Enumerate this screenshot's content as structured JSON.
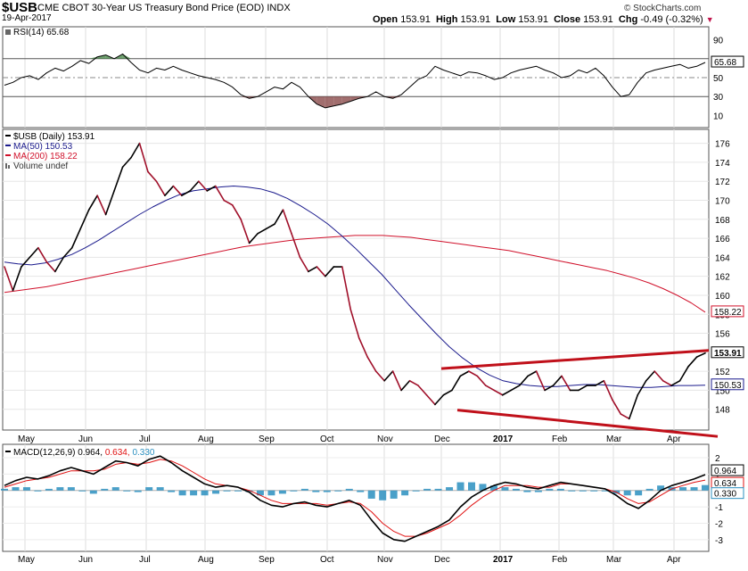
{
  "header": {
    "symbol": "$USB",
    "description": "CME CBOT 30-Year US Treasury Bond Price (EOD)",
    "exchange": "INDX",
    "date": "19-Apr-2017",
    "watermark": "© StockCharts.com",
    "open_label": "Open",
    "open": "153.91",
    "high_label": "High",
    "high": "153.91",
    "low_label": "Low",
    "low": "153.91",
    "close_label": "Close",
    "close": "153.91",
    "chg_label": "Chg",
    "chg": "-0.49 (-0.32%)"
  },
  "colors": {
    "price": "#a0102a",
    "price_up": "#000000",
    "ma50": "#1a1a8c",
    "ma200": "#d0102a",
    "trendline": "#c0101a",
    "macd": "#000000",
    "signal": "#e01010",
    "hist": "#2a8fbf",
    "rsi_fill_high": "#4a8a4a",
    "rsi_fill_low": "#8a4a4a"
  },
  "x_axis": {
    "months": [
      "May",
      "Jun",
      "Jul",
      "Aug",
      "Sep",
      "Oct",
      "Nov",
      "Dec",
      "2017",
      "Feb",
      "Mar",
      "Apr"
    ]
  },
  "rsi_panel": {
    "label": "RSI(14) 65.68",
    "value_tag": "65.68",
    "ticks": [
      "90",
      "70",
      "50",
      "30",
      "10"
    ]
  },
  "chart_data": [
    {
      "type": "line",
      "panel": "RSI",
      "series": [
        {
          "name": "RSI(14)",
          "values": [
            42,
            45,
            50,
            52,
            48,
            55,
            60,
            57,
            62,
            68,
            65,
            72,
            74,
            70,
            75,
            66,
            58,
            55,
            60,
            58,
            62,
            58,
            55,
            52,
            50,
            48,
            45,
            40,
            32,
            28,
            30,
            35,
            40,
            38,
            45,
            40,
            30,
            22,
            18,
            20,
            22,
            25,
            28,
            30,
            35,
            30,
            28,
            32,
            40,
            48,
            52,
            62,
            58,
            55,
            52,
            56,
            55,
            52,
            48,
            50,
            55,
            58,
            60,
            62,
            58,
            55,
            50,
            52,
            58,
            55,
            60,
            52,
            40,
            30,
            32,
            45,
            55,
            58,
            60,
            62,
            64,
            60,
            62,
            66
          ]
        }
      ],
      "ylim": [
        0,
        100
      ],
      "reference_lines": [
        70,
        50,
        30
      ]
    },
    {
      "type": "line",
      "panel": "Price",
      "legend": [
        "$USB (Daily) 153.91",
        "MA(50) 150.53",
        "MA(200) 158.22",
        "Volume undef"
      ],
      "y_ticks": [
        "176",
        "174",
        "172",
        "170",
        "168",
        "166",
        "164",
        "162",
        "160",
        "158",
        "156",
        "154",
        "152",
        "150",
        "148"
      ],
      "last_tags": {
        "price": "153.91",
        "ma50": "150.53",
        "ma200": "158.22"
      },
      "ylim": [
        146,
        177
      ],
      "series": [
        {
          "name": "$USB (Daily) 153.91",
          "values": [
            163,
            160.5,
            163,
            164,
            165,
            163.5,
            162.5,
            164,
            165,
            167,
            169,
            170.5,
            168.5,
            171,
            173.5,
            174.5,
            176,
            173,
            172,
            170.5,
            171.5,
            170.5,
            171,
            172,
            171,
            171.5,
            170,
            169.5,
            168,
            165.5,
            166.5,
            167,
            167.5,
            169,
            166.5,
            164,
            162.5,
            163,
            162,
            163,
            163,
            158.5,
            155.5,
            153.5,
            152,
            151,
            152,
            150,
            151,
            150.5,
            149.5,
            148.5,
            149.5,
            150,
            151.5,
            152,
            151.5,
            150.5,
            150,
            149.5,
            150,
            150.5,
            151.5,
            152,
            150,
            150.5,
            151.5,
            150,
            150,
            150.5,
            150.5,
            151,
            149,
            147.5,
            147,
            149.5,
            151,
            152,
            151,
            150.5,
            151,
            152.5,
            153.5,
            153.91
          ]
        },
        {
          "name": "MA(50) 150.53",
          "values": [
            163.5,
            163.3,
            163.2,
            163.4,
            163.8,
            164.3,
            165.0,
            165.8,
            166.7,
            167.6,
            168.5,
            169.3,
            170.0,
            170.6,
            171.0,
            171.2,
            171.4,
            171.5,
            171.4,
            171.2,
            170.8,
            170.2,
            169.4,
            168.5,
            167.5,
            166.3,
            165.0,
            163.6,
            162.2,
            160.6,
            159.0,
            157.5,
            156.0,
            154.6,
            153.4,
            152.4,
            151.6,
            151.0,
            150.7,
            150.5,
            150.4,
            150.4,
            150.5,
            150.6,
            150.6,
            150.5,
            150.4,
            150.3,
            150.3,
            150.4,
            150.5,
            150.5,
            150.53
          ]
        },
        {
          "name": "MA(200) 158.22",
          "values": [
            160.3,
            160.5,
            160.7,
            160.9,
            161.2,
            161.5,
            161.8,
            162.1,
            162.4,
            162.7,
            163.0,
            163.3,
            163.6,
            163.9,
            164.2,
            164.5,
            164.8,
            165.1,
            165.3,
            165.5,
            165.7,
            165.9,
            166.0,
            166.1,
            166.2,
            166.3,
            166.3,
            166.3,
            166.2,
            166.1,
            165.9,
            165.7,
            165.5,
            165.3,
            165.1,
            164.9,
            164.7,
            164.4,
            164.1,
            163.8,
            163.5,
            163.2,
            162.9,
            162.6,
            162.2,
            161.8,
            161.3,
            160.7,
            160.0,
            159.2,
            158.22
          ]
        }
      ],
      "trendlines": [
        {
          "name": "upper",
          "x": [
            "Dec",
            "Apr"
          ],
          "y": [
            152.0,
            154.2
          ]
        },
        {
          "name": "lower",
          "x": [
            "Dec",
            "Apr"
          ],
          "y": [
            148.2,
            145.7
          ]
        }
      ]
    },
    {
      "type": "line",
      "panel": "MACD",
      "legend": [
        "MACD(12,26,9) 0.964,",
        "0.634,",
        "0.330"
      ],
      "y_ticks": [
        "2",
        "1",
        "0",
        "-1",
        "-2",
        "-3"
      ],
      "last_tags": {
        "macd": "0.964",
        "signal": "0.634",
        "hist": "0.330"
      },
      "ylim": [
        -3.5,
        2.6
      ],
      "series": [
        {
          "name": "MACD(12,26,9)",
          "values": [
            0.3,
            0.6,
            0.8,
            0.7,
            0.9,
            1.2,
            1.4,
            1.2,
            1.0,
            1.4,
            1.8,
            1.7,
            1.5,
            1.9,
            2.1,
            1.7,
            1.2,
            0.8,
            0.4,
            0.2,
            0.3,
            0.2,
            -0.1,
            -0.6,
            -0.9,
            -1.0,
            -0.8,
            -0.7,
            -0.9,
            -1.0,
            -0.8,
            -0.6,
            -0.9,
            -1.8,
            -2.6,
            -3.0,
            -3.1,
            -2.8,
            -2.5,
            -2.2,
            -1.8,
            -1.0,
            -0.4,
            0.0,
            0.3,
            0.5,
            0.4,
            0.2,
            0.1,
            0.3,
            0.5,
            0.4,
            0.3,
            0.2,
            0.1,
            -0.3,
            -0.8,
            -1.1,
            -0.6,
            0.0,
            0.3,
            0.5,
            0.7,
            0.964
          ]
        },
        {
          "name": "Signal",
          "values": [
            0.2,
            0.4,
            0.6,
            0.7,
            0.8,
            1.0,
            1.2,
            1.2,
            1.2,
            1.3,
            1.6,
            1.7,
            1.6,
            1.7,
            1.9,
            1.8,
            1.5,
            1.1,
            0.7,
            0.4,
            0.3,
            0.2,
            0.0,
            -0.3,
            -0.6,
            -0.8,
            -0.8,
            -0.8,
            -0.8,
            -0.9,
            -0.8,
            -0.7,
            -0.8,
            -1.3,
            -2.0,
            -2.5,
            -2.8,
            -2.8,
            -2.6,
            -2.3,
            -2.0,
            -1.5,
            -0.9,
            -0.4,
            0.0,
            0.3,
            0.3,
            0.3,
            0.2,
            0.2,
            0.4,
            0.4,
            0.3,
            0.2,
            0.1,
            -0.1,
            -0.5,
            -0.8,
            -0.7,
            -0.3,
            0.1,
            0.3,
            0.5,
            0.634
          ]
        },
        {
          "name": "Histogram",
          "values": [
            0.1,
            0.2,
            0.2,
            0.0,
            0.1,
            0.2,
            0.2,
            0.0,
            -0.2,
            0.1,
            0.2,
            0.0,
            -0.1,
            0.2,
            0.2,
            -0.1,
            -0.3,
            -0.3,
            -0.3,
            -0.2,
            0.0,
            0.0,
            -0.1,
            -0.3,
            -0.3,
            -0.2,
            0.0,
            0.1,
            -0.1,
            -0.1,
            0.0,
            0.1,
            -0.1,
            -0.5,
            -0.6,
            -0.5,
            -0.3,
            0.0,
            0.1,
            0.1,
            0.2,
            0.5,
            0.5,
            0.4,
            0.3,
            0.2,
            0.1,
            -0.1,
            -0.1,
            0.1,
            0.1,
            0.0,
            0.0,
            0.0,
            0.0,
            -0.2,
            -0.3,
            -0.3,
            0.1,
            0.3,
            0.2,
            0.2,
            0.2,
            0.33
          ]
        }
      ]
    }
  ]
}
